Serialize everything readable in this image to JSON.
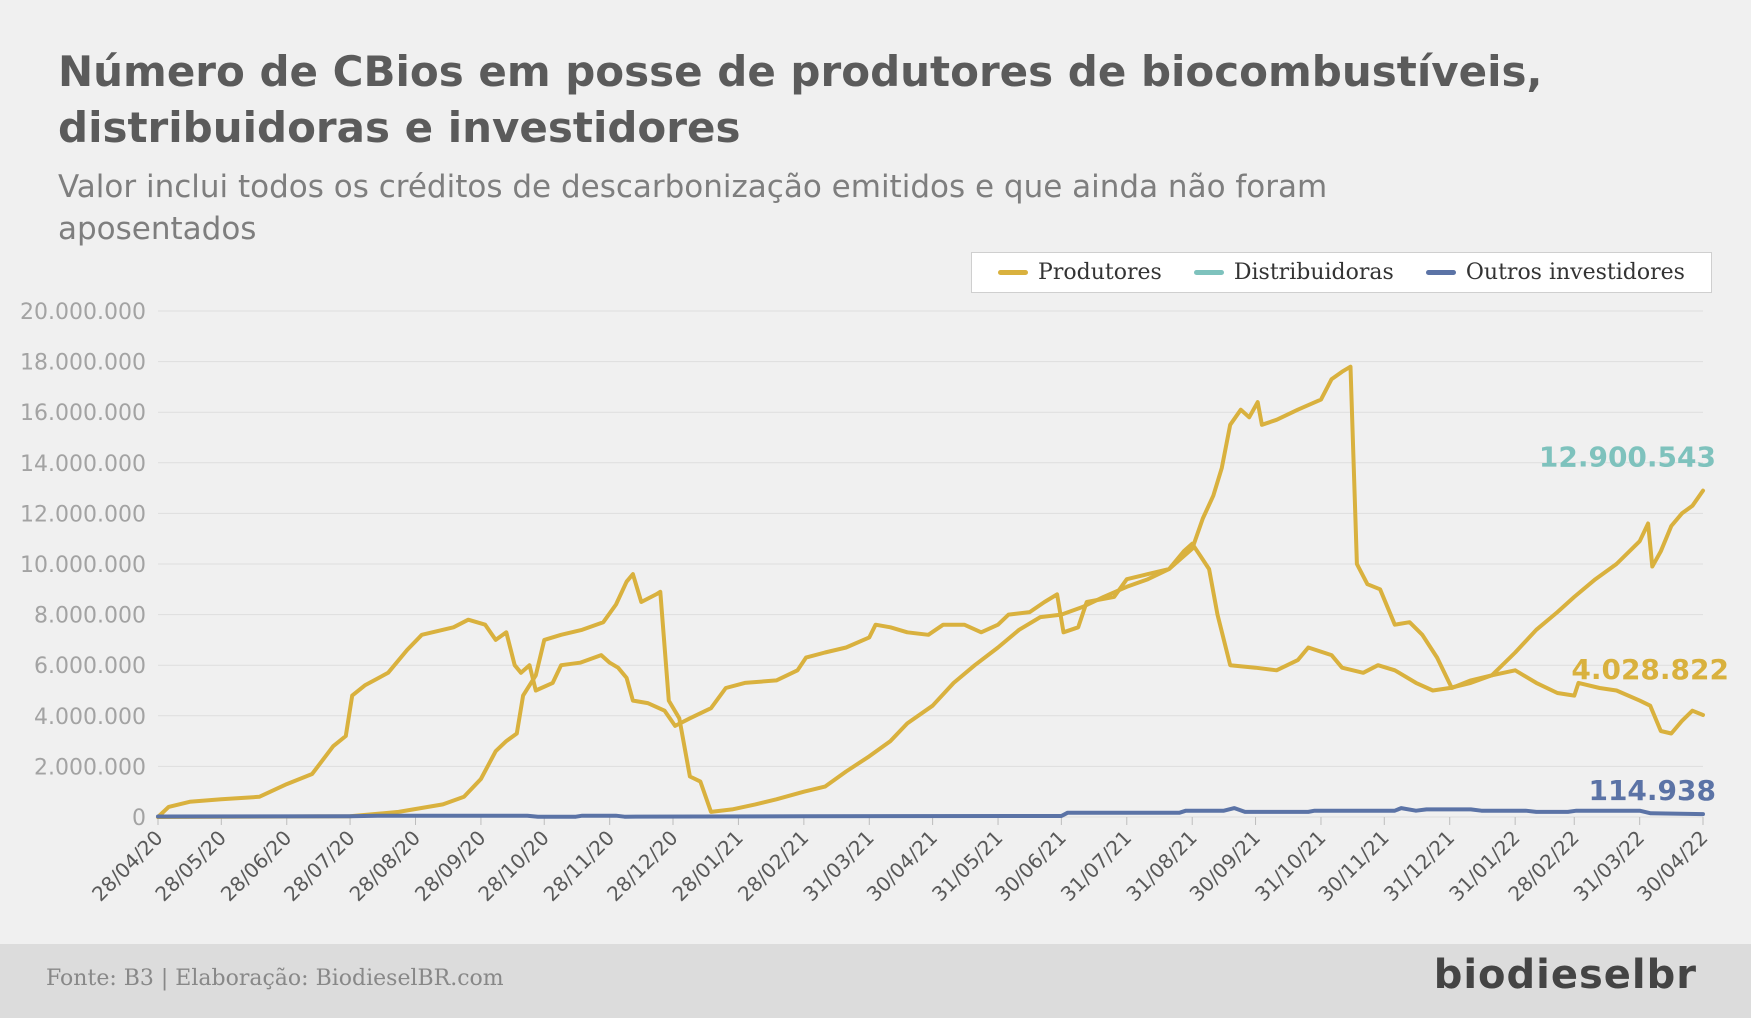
{
  "header": {
    "title": "Número de CBios em posse de produtores de biocombustíveis, distribuidoras e investidores",
    "subtitle": "Valor inclui todos os créditos de descarbonização emitidos e que ainda não foram aposentados"
  },
  "footer": {
    "source": "Fonte: B3 | Elaboração: BiodieselBR.com",
    "logo": "biodieselbr"
  },
  "colors": {
    "produtores": "#d9b13e",
    "distribuidoras": "#7ec2bd",
    "investidores": "#5b73a6",
    "grid": "#dedede",
    "background": "#f0f0f0"
  },
  "chart_data": {
    "type": "line",
    "ylim": [
      0,
      20000000
    ],
    "yticks": [
      0,
      2000000,
      4000000,
      6000000,
      8000000,
      10000000,
      12000000,
      14000000,
      16000000,
      18000000,
      20000000
    ],
    "ytick_labels": [
      "0",
      "2.000.000",
      "4.000.000",
      "6.000.000",
      "8.000.000",
      "10.000.000",
      "12.000.000",
      "14.000.000",
      "16.000.000",
      "18.000.000",
      "20.000.000"
    ],
    "xlim": [
      "2020-04-28",
      "2022-04-30"
    ],
    "xtick_labels": [
      "28/04/20",
      "28/05/20",
      "28/06/20",
      "28/07/20",
      "28/08/20",
      "28/09/20",
      "28/10/20",
      "28/11/20",
      "28/12/20",
      "28/01/21",
      "28/02/21",
      "31/03/21",
      "30/04/21",
      "31/05/21",
      "30/06/21",
      "31/07/21",
      "31/08/21",
      "30/09/21",
      "31/10/21",
      "30/11/21",
      "31/12/21",
      "31/01/22",
      "28/02/22",
      "31/03/22",
      "30/04/22"
    ],
    "xtick_dates": [
      "2020-04-28",
      "2020-05-28",
      "2020-06-28",
      "2020-07-28",
      "2020-08-28",
      "2020-09-28",
      "2020-10-28",
      "2020-11-28",
      "2020-12-28",
      "2021-01-28",
      "2021-02-28",
      "2021-03-31",
      "2021-04-30",
      "2021-05-31",
      "2021-06-30",
      "2021-07-31",
      "2021-08-31",
      "2021-09-30",
      "2021-10-31",
      "2021-11-30",
      "2021-12-31",
      "2022-01-31",
      "2022-02-28",
      "2022-03-31",
      "2022-04-30"
    ],
    "grid": true,
    "legend_position": "top-right",
    "series": [
      {
        "name": "Produtores",
        "color": "#d9b13e",
        "end_label": "4.028.822",
        "points": [
          [
            "2020-04-28",
            0
          ],
          [
            "2020-05-03",
            400000
          ],
          [
            "2020-05-13",
            600000
          ],
          [
            "2020-05-28",
            700000
          ],
          [
            "2020-06-15",
            800000
          ],
          [
            "2020-06-28",
            1300000
          ],
          [
            "2020-07-10",
            1700000
          ],
          [
            "2020-07-20",
            2800000
          ],
          [
            "2020-07-26",
            3200000
          ],
          [
            "2020-07-29",
            4800000
          ],
          [
            "2020-08-04",
            5200000
          ],
          [
            "2020-08-15",
            5700000
          ],
          [
            "2020-08-24",
            6600000
          ],
          [
            "2020-08-31",
            7200000
          ],
          [
            "2020-09-15",
            7500000
          ],
          [
            "2020-09-22",
            7800000
          ],
          [
            "2020-09-30",
            7600000
          ],
          [
            "2020-10-05",
            7000000
          ],
          [
            "2020-10-10",
            7300000
          ],
          [
            "2020-10-14",
            6000000
          ],
          [
            "2020-10-17",
            5700000
          ],
          [
            "2020-10-21",
            6000000
          ],
          [
            "2020-10-24",
            5000000
          ],
          [
            "2020-11-01",
            5300000
          ],
          [
            "2020-11-05",
            6000000
          ],
          [
            "2020-11-14",
            6100000
          ],
          [
            "2020-11-24",
            6400000
          ],
          [
            "2020-11-28",
            6100000
          ],
          [
            "2020-12-02",
            5900000
          ],
          [
            "2020-12-06",
            5500000
          ],
          [
            "2020-12-09",
            4600000
          ],
          [
            "2020-12-16",
            4500000
          ],
          [
            "2020-12-24",
            4200000
          ],
          [
            "2020-12-29",
            3600000
          ],
          [
            "2021-01-05",
            3900000
          ],
          [
            "2021-01-15",
            4300000
          ],
          [
            "2021-01-22",
            5100000
          ],
          [
            "2021-01-31",
            5300000
          ],
          [
            "2021-02-15",
            5400000
          ],
          [
            "2021-02-25",
            5800000
          ],
          [
            "2021-03-01",
            6300000
          ],
          [
            "2021-03-10",
            6500000
          ],
          [
            "2021-03-20",
            6700000
          ],
          [
            "2021-03-31",
            7100000
          ],
          [
            "2021-04-03",
            7600000
          ],
          [
            "2021-04-10",
            7500000
          ],
          [
            "2021-04-18",
            7300000
          ],
          [
            "2021-04-28",
            7200000
          ],
          [
            "2021-05-05",
            7600000
          ],
          [
            "2021-05-15",
            7600000
          ],
          [
            "2021-05-23",
            7300000
          ],
          [
            "2021-05-31",
            7600000
          ],
          [
            "2021-06-05",
            8000000
          ],
          [
            "2021-06-15",
            8100000
          ],
          [
            "2021-06-22",
            8500000
          ],
          [
            "2021-06-28",
            8800000
          ],
          [
            "2021-07-01",
            7300000
          ],
          [
            "2021-07-08",
            7500000
          ],
          [
            "2021-07-12",
            8500000
          ],
          [
            "2021-07-25",
            8700000
          ],
          [
            "2021-07-31",
            9400000
          ],
          [
            "2021-08-10",
            9600000
          ],
          [
            "2021-08-20",
            9800000
          ],
          [
            "2021-08-27",
            10500000
          ],
          [
            "2021-08-31",
            10800000
          ],
          [
            "2021-09-04",
            10300000
          ],
          [
            "2021-09-08",
            9800000
          ],
          [
            "2021-09-12",
            8000000
          ],
          [
            "2021-09-18",
            6000000
          ],
          [
            "2021-09-30",
            5900000
          ],
          [
            "2021-10-10",
            5800000
          ],
          [
            "2021-10-20",
            6200000
          ],
          [
            "2021-10-25",
            6700000
          ],
          [
            "2021-11-05",
            6400000
          ],
          [
            "2021-11-10",
            5900000
          ],
          [
            "2021-11-20",
            5700000
          ],
          [
            "2021-11-27",
            6000000
          ],
          [
            "2021-12-05",
            5800000
          ],
          [
            "2021-12-15",
            5300000
          ],
          [
            "2021-12-23",
            5000000
          ],
          [
            "2021-12-31",
            5100000
          ],
          [
            "2022-01-10",
            5300000
          ],
          [
            "2022-01-20",
            5600000
          ],
          [
            "2022-01-31",
            5800000
          ],
          [
            "2022-02-10",
            5300000
          ],
          [
            "2022-02-20",
            4900000
          ],
          [
            "2022-02-28",
            4800000
          ],
          [
            "2022-03-02",
            5300000
          ],
          [
            "2022-03-12",
            5100000
          ],
          [
            "2022-03-20",
            5000000
          ],
          [
            "2022-03-31",
            4600000
          ],
          [
            "2022-04-05",
            4400000
          ],
          [
            "2022-04-10",
            3400000
          ],
          [
            "2022-04-15",
            3300000
          ],
          [
            "2022-04-20",
            3800000
          ],
          [
            "2022-04-25",
            4200000
          ],
          [
            "2022-04-30",
            4030000
          ]
        ]
      },
      {
        "name": "Distribuidoras",
        "color": "#d9b13e",
        "end_label": "12.900.543",
        "end_label_color": "#7ec2bd",
        "points": [
          [
            "2020-04-28",
            0
          ],
          [
            "2020-07-28",
            30000
          ],
          [
            "2020-08-20",
            200000
          ],
          [
            "2020-09-10",
            500000
          ],
          [
            "2020-09-20",
            800000
          ],
          [
            "2020-09-28",
            1500000
          ],
          [
            "2020-10-05",
            2600000
          ],
          [
            "2020-10-10",
            3000000
          ],
          [
            "2020-10-15",
            3300000
          ],
          [
            "2020-10-18",
            4800000
          ],
          [
            "2020-10-24",
            5600000
          ],
          [
            "2020-10-28",
            7000000
          ],
          [
            "2020-11-05",
            7200000
          ],
          [
            "2020-11-15",
            7400000
          ],
          [
            "2020-11-25",
            7700000
          ],
          [
            "2020-12-01",
            8400000
          ],
          [
            "2020-12-06",
            9300000
          ],
          [
            "2020-12-09",
            9600000
          ],
          [
            "2020-12-13",
            8500000
          ],
          [
            "2020-12-20",
            8800000
          ],
          [
            "2020-12-22",
            8900000
          ],
          [
            "2020-12-26",
            4600000
          ],
          [
            "2020-12-31",
            3900000
          ],
          [
            "2021-01-05",
            1600000
          ],
          [
            "2021-01-10",
            1400000
          ],
          [
            "2021-01-15",
            200000
          ],
          [
            "2021-01-25",
            300000
          ],
          [
            "2021-02-05",
            500000
          ],
          [
            "2021-02-15",
            700000
          ],
          [
            "2021-02-28",
            1000000
          ],
          [
            "2021-03-10",
            1200000
          ],
          [
            "2021-03-20",
            1800000
          ],
          [
            "2021-03-31",
            2400000
          ],
          [
            "2021-04-10",
            3000000
          ],
          [
            "2021-04-18",
            3700000
          ],
          [
            "2021-04-30",
            4400000
          ],
          [
            "2021-05-10",
            5300000
          ],
          [
            "2021-05-20",
            6000000
          ],
          [
            "2021-05-31",
            6700000
          ],
          [
            "2021-06-10",
            7400000
          ],
          [
            "2021-06-20",
            7900000
          ],
          [
            "2021-06-30",
            8000000
          ],
          [
            "2021-07-10",
            8300000
          ],
          [
            "2021-07-20",
            8700000
          ],
          [
            "2021-07-31",
            9100000
          ],
          [
            "2021-08-10",
            9400000
          ],
          [
            "2021-08-20",
            9800000
          ],
          [
            "2021-08-31",
            10600000
          ],
          [
            "2021-09-05",
            11800000
          ],
          [
            "2021-09-10",
            12700000
          ],
          [
            "2021-09-14",
            13800000
          ],
          [
            "2021-09-18",
            15500000
          ],
          [
            "2021-09-23",
            16100000
          ],
          [
            "2021-09-27",
            15800000
          ],
          [
            "2021-10-01",
            16400000
          ],
          [
            "2021-10-03",
            15500000
          ],
          [
            "2021-10-10",
            15700000
          ],
          [
            "2021-10-20",
            16100000
          ],
          [
            "2021-10-31",
            16500000
          ],
          [
            "2021-11-05",
            17300000
          ],
          [
            "2021-11-10",
            17600000
          ],
          [
            "2021-11-14",
            17800000
          ],
          [
            "2021-11-17",
            10000000
          ],
          [
            "2021-11-22",
            9200000
          ],
          [
            "2021-11-28",
            9000000
          ],
          [
            "2021-12-05",
            7600000
          ],
          [
            "2021-12-12",
            7700000
          ],
          [
            "2021-12-18",
            7200000
          ],
          [
            "2021-12-25",
            6300000
          ],
          [
            "2022-01-01",
            5100000
          ],
          [
            "2022-01-10",
            5400000
          ],
          [
            "2022-01-20",
            5600000
          ],
          [
            "2022-01-31",
            6500000
          ],
          [
            "2022-02-10",
            7400000
          ],
          [
            "2022-02-20",
            8100000
          ],
          [
            "2022-02-28",
            8700000
          ],
          [
            "2022-03-10",
            9400000
          ],
          [
            "2022-03-20",
            10000000
          ],
          [
            "2022-03-31",
            10900000
          ],
          [
            "2022-04-04",
            11600000
          ],
          [
            "2022-04-06",
            9900000
          ],
          [
            "2022-04-10",
            10500000
          ],
          [
            "2022-04-15",
            11500000
          ],
          [
            "2022-04-20",
            12000000
          ],
          [
            "2022-04-25",
            12300000
          ],
          [
            "2022-04-30",
            12900000
          ]
        ]
      },
      {
        "name": "Outros investidores",
        "color": "#5b73a6",
        "end_label": "114.938",
        "points": [
          [
            "2020-04-28",
            20000
          ],
          [
            "2020-07-28",
            30000
          ],
          [
            "2020-08-10",
            50000
          ],
          [
            "2020-10-20",
            50000
          ],
          [
            "2020-10-25",
            10000
          ],
          [
            "2020-11-12",
            10000
          ],
          [
            "2020-11-15",
            50000
          ],
          [
            "2020-12-01",
            50000
          ],
          [
            "2020-12-05",
            10000
          ],
          [
            "2021-02-28",
            30000
          ],
          [
            "2021-06-30",
            40000
          ],
          [
            "2021-07-03",
            170000
          ],
          [
            "2021-08-25",
            170000
          ],
          [
            "2021-08-28",
            250000
          ],
          [
            "2021-09-15",
            250000
          ],
          [
            "2021-09-20",
            350000
          ],
          [
            "2021-09-25",
            200000
          ],
          [
            "2021-10-25",
            200000
          ],
          [
            "2021-10-28",
            250000
          ],
          [
            "2021-12-05",
            250000
          ],
          [
            "2021-12-08",
            350000
          ],
          [
            "2021-12-15",
            250000
          ],
          [
            "2021-12-20",
            300000
          ],
          [
            "2022-01-10",
            300000
          ],
          [
            "2022-01-15",
            250000
          ],
          [
            "2022-02-05",
            250000
          ],
          [
            "2022-02-10",
            200000
          ],
          [
            "2022-02-25",
            200000
          ],
          [
            "2022-03-01",
            250000
          ],
          [
            "2022-03-31",
            250000
          ],
          [
            "2022-04-05",
            150000
          ],
          [
            "2022-04-30",
            115000
          ]
        ]
      }
    ],
    "legend": [
      {
        "label": "Produtores",
        "color": "#d9b13e"
      },
      {
        "label": "Distribuidoras",
        "color": "#7ec2bd"
      },
      {
        "label": "Outros investidores",
        "color": "#5b73a6"
      }
    ]
  }
}
